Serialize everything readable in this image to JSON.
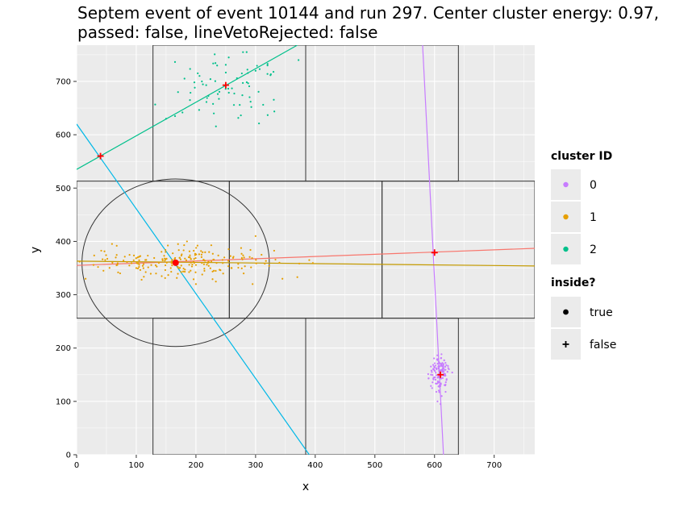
{
  "chart_data": {
    "type": "scatter",
    "title": "Septem event of event 10144 and run 297. Center cluster energy: 0.97, passed: false, lineVetoRejected: false",
    "xlabel": "x",
    "ylabel": "y",
    "xlim": [
      0,
      768
    ],
    "ylim": [
      0,
      768
    ],
    "x_ticks": [
      0,
      100,
      200,
      300,
      400,
      500,
      600,
      700
    ],
    "y_ticks": [
      0,
      100,
      200,
      300,
      400,
      500,
      600,
      700
    ],
    "grid": true,
    "background": "#ebebeb",
    "legend_position": "right",
    "legends": [
      {
        "title": "cluster ID",
        "entries": [
          {
            "label": "0",
            "color": "#c77cff",
            "shape": "point"
          },
          {
            "label": "1",
            "color": "#e69f00",
            "shape": "point"
          },
          {
            "label": "2",
            "color": "#00c08b",
            "shape": "point"
          }
        ]
      },
      {
        "title": "inside?",
        "entries": [
          {
            "label": "true",
            "shape": "circle"
          },
          {
            "label": "false",
            "shape": "plus"
          }
        ]
      }
    ],
    "chip_grid": {
      "rects": [
        {
          "x0": 128,
          "x1": 384,
          "y0": 513,
          "y1": 768
        },
        {
          "x0": 384,
          "x1": 640,
          "y0": 513,
          "y1": 768
        },
        {
          "x0": 0,
          "x1": 256,
          "y0": 256,
          "y1": 513
        },
        {
          "x0": 256,
          "x1": 512,
          "y0": 256,
          "y1": 513
        },
        {
          "x0": 512,
          "x1": 768,
          "y0": 256,
          "y1": 513
        },
        {
          "x0": 128,
          "x1": 384,
          "y0": 0,
          "y1": 256
        },
        {
          "x0": 384,
          "x1": 640,
          "y0": 0,
          "y1": 256
        }
      ]
    },
    "circle": {
      "cx": 166,
      "cy": 360,
      "r": 157
    },
    "lines": [
      {
        "color": "#c77cff",
        "points": [
          [
            580,
            768
          ],
          [
            615,
            0
          ]
        ]
      },
      {
        "color": "#00c08b",
        "points": [
          [
            0,
            535
          ],
          [
            370,
            768
          ]
        ]
      },
      {
        "color": "#00b8e7",
        "points": [
          [
            0,
            620
          ],
          [
            390,
            0
          ]
        ]
      },
      {
        "color": "#f8766d",
        "points": [
          [
            0,
            355
          ],
          [
            768,
            387
          ]
        ]
      },
      {
        "color": "#c49a00",
        "points": [
          [
            0,
            363
          ],
          [
            768,
            354
          ]
        ]
      }
    ],
    "cluster_centers": [
      {
        "x": 166,
        "y": 360,
        "inside": "true",
        "color": "#ff0000"
      },
      {
        "x": 40,
        "y": 560,
        "inside": "false",
        "color": "#ff0000"
      },
      {
        "x": 250,
        "y": 693,
        "inside": "false",
        "color": "#ff0000"
      },
      {
        "x": 600,
        "y": 379,
        "inside": "false",
        "color": "#ff0000"
      },
      {
        "x": 610,
        "y": 150,
        "inside": "false",
        "color": "#ff0000"
      }
    ],
    "series": [
      {
        "cluster": "0",
        "color": "#c77cff",
        "center": [
          607,
          155
        ],
        "spread": [
          8,
          16
        ],
        "count": 130,
        "points": [
          [
            598,
            160
          ],
          [
            603,
            118
          ],
          [
            612,
            110
          ],
          [
            596,
            125
          ],
          [
            618,
            130
          ],
          [
            605,
            100
          ],
          [
            620,
            140
          ],
          [
            594,
            150
          ],
          [
            615,
            170
          ],
          [
            610,
            95
          ]
        ]
      },
      {
        "cluster": "1",
        "color": "#e69f00",
        "center": [
          165,
          360
        ],
        "spread": [
          75,
          15
        ],
        "count": 220,
        "points": [
          [
            5,
            362
          ],
          [
            15,
            330
          ],
          [
            45,
            345
          ],
          [
            60,
            360
          ],
          [
            100,
            350
          ],
          [
            170,
            395
          ],
          [
            185,
            400
          ],
          [
            200,
            320
          ],
          [
            230,
            345
          ],
          [
            260,
            350
          ],
          [
            280,
            340
          ],
          [
            295,
            320
          ],
          [
            310,
            375
          ],
          [
            300,
            410
          ],
          [
            340,
            360
          ],
          [
            345,
            330
          ],
          [
            370,
            333
          ],
          [
            390,
            365
          ]
        ]
      },
      {
        "cluster": "2",
        "color": "#00c08b",
        "center": [
          250,
          690
        ],
        "spread": [
          45,
          35
        ],
        "count": 75,
        "points": [
          [
            150,
            630
          ],
          [
            165,
            635
          ],
          [
            170,
            680
          ],
          [
            190,
            665
          ],
          [
            210,
            700
          ],
          [
            230,
            640
          ],
          [
            255,
            745
          ],
          [
            285,
            755
          ],
          [
            300,
            720
          ],
          [
            320,
            730
          ],
          [
            330,
            718
          ],
          [
            372,
            740
          ]
        ]
      }
    ]
  }
}
